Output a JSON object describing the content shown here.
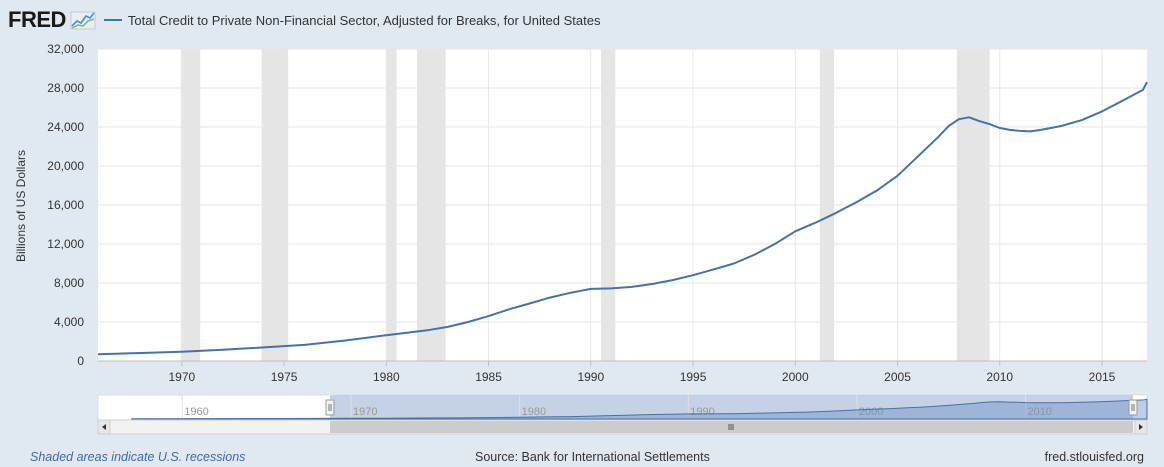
{
  "header": {
    "logo": "FRED",
    "series_title": "Total Credit to Private Non-Financial Sector, Adjusted for Breaks, for United States"
  },
  "footer": {
    "recession_note": "Shaded areas indicate U.S. recessions",
    "source": "Source: Bank for International Settlements",
    "site": "fred.stlouisfed.org"
  },
  "colors": {
    "series": "#4572a7",
    "recession": "#e5e5e5",
    "background": "#e1e9f0",
    "plot": "#ffffff"
  },
  "chart_data": {
    "type": "line",
    "ylabel": "Billions of US Dollars",
    "ylim": [
      0,
      32000
    ],
    "yticks": [
      0,
      4000,
      8000,
      12000,
      16000,
      20000,
      24000,
      28000,
      32000
    ],
    "ytick_labels": [
      "0",
      "4,000",
      "8,000",
      "12,000",
      "16,000",
      "20,000",
      "24,000",
      "28,000",
      "32,000"
    ],
    "xlim": [
      1965.9,
      2017.2
    ],
    "xticks": [
      1970,
      1975,
      1980,
      1985,
      1990,
      1995,
      2000,
      2005,
      2010,
      2015
    ],
    "grid": true,
    "recessions": [
      [
        1969.95,
        1970.9
      ],
      [
        1973.9,
        1975.2
      ],
      [
        1980.0,
        1980.5
      ],
      [
        1981.5,
        1982.9
      ],
      [
        1990.5,
        1991.2
      ],
      [
        2001.2,
        2001.9
      ],
      [
        2007.9,
        2009.5
      ]
    ],
    "series": [
      {
        "name": "Total Credit to Private Non-Financial Sector, Adjusted for Breaks, for United States",
        "x": [
          1965.9,
          1968,
          1970,
          1972,
          1974,
          1976,
          1978,
          1980,
          1981,
          1982,
          1983,
          1984,
          1985,
          1986,
          1987,
          1988,
          1989,
          1990,
          1991,
          1992,
          1993,
          1994,
          1995,
          1996,
          1997,
          1998,
          1999,
          2000,
          2001,
          2002,
          2003,
          2004,
          2005,
          2006,
          2007,
          2007.5,
          2008,
          2008.5,
          2009,
          2009.5,
          2010,
          2010.5,
          2011,
          2011.5,
          2012,
          2012.5,
          2013,
          2014,
          2015,
          2016,
          2017,
          2017.2
        ],
        "values": [
          700,
          820,
          950,
          1150,
          1400,
          1650,
          2100,
          2650,
          2900,
          3150,
          3500,
          4000,
          4600,
          5300,
          5900,
          6500,
          7000,
          7400,
          7450,
          7600,
          7900,
          8300,
          8800,
          9400,
          10000,
          10900,
          12000,
          13300,
          14200,
          15200,
          16300,
          17500,
          19000,
          21000,
          23000,
          24100,
          24800,
          25000,
          24600,
          24300,
          23900,
          23700,
          23600,
          23550,
          23700,
          23900,
          24100,
          24700,
          25600,
          26700,
          27800,
          28600
        ]
      }
    ],
    "navigator": {
      "xticks": [
        1960,
        1970,
        1980,
        1990,
        2000,
        2010
      ]
    }
  }
}
